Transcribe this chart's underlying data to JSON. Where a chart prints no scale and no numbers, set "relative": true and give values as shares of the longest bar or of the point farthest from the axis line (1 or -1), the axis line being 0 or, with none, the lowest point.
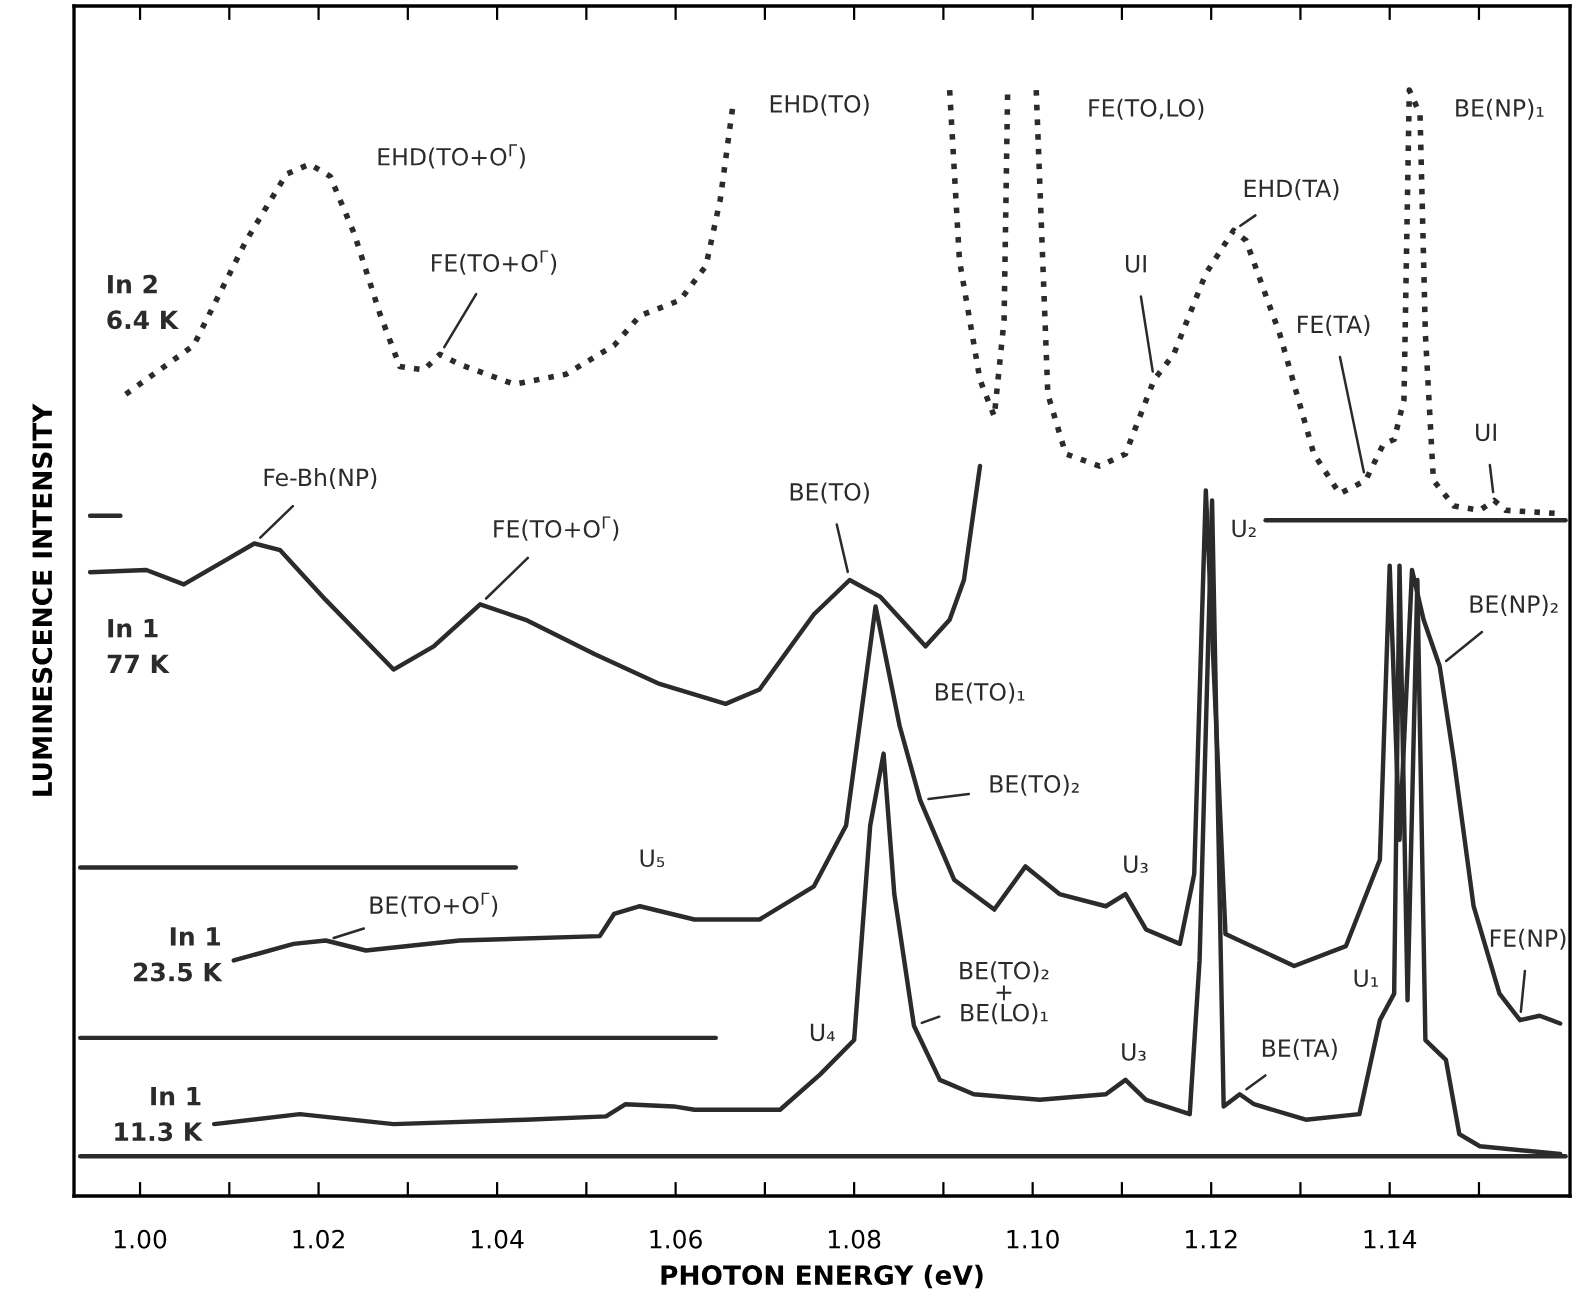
{
  "chart_data": {
    "type": "line",
    "relative": true,
    "xlabel": "PHOTON ENERGY (eV)",
    "ylabel": "LUMINESCENCE INTENSITY",
    "xlim": [
      0.9926,
      1.1602
    ],
    "xticks": [
      {
        "value": 1.0,
        "label": "1.00"
      },
      {
        "value": 1.01,
        "label": null
      },
      {
        "value": 1.02,
        "label": "1.02"
      },
      {
        "value": 1.03,
        "label": null
      },
      {
        "value": 1.04,
        "label": "1.04"
      },
      {
        "value": 1.05,
        "label": null
      },
      {
        "value": 1.06,
        "label": "1.06"
      },
      {
        "value": 1.07,
        "label": null
      },
      {
        "value": 1.08,
        "label": "1.08"
      },
      {
        "value": 1.09,
        "label": null
      },
      {
        "value": 1.1,
        "label": "1.10"
      },
      {
        "value": 1.11,
        "label": null
      },
      {
        "value": 1.12,
        "label": "1.12"
      },
      {
        "value": 1.13,
        "label": null
      },
      {
        "value": 1.14,
        "label": "1.14"
      },
      {
        "value": 1.15,
        "label": null
      }
    ],
    "grid": false,
    "series": [
      {
        "name": "In 2\n6.4 K",
        "color": "#2b2b2b",
        "line_style": "dotted",
        "x": [
          0.9984,
          1.006,
          1.0119,
          1.0164,
          1.019,
          1.0213,
          1.024,
          1.0269,
          1.0291,
          1.0318,
          1.0336,
          1.0358,
          1.0419,
          1.0477,
          1.0531,
          1.056,
          1.0605,
          1.0634,
          1.065,
          1.0665,
          1.08,
          1.0907,
          1.0918,
          1.0941,
          1.0957,
          1.0968,
          1.0972,
          1.099,
          1.1004,
          1.1017,
          1.1037,
          1.1075,
          1.1104,
          1.1136,
          1.1158,
          1.1194,
          1.1225,
          1.1239,
          1.1277,
          1.1315,
          1.1344,
          1.1373,
          1.1393,
          1.1405,
          1.1416,
          1.1422,
          1.1434,
          1.144,
          1.1449,
          1.1472,
          1.1501,
          1.1517,
          1.153,
          1.1591
        ],
        "values": [
          0.725,
          0.769,
          0.864,
          0.924,
          0.933,
          0.922,
          0.87,
          0.797,
          0.75,
          0.747,
          0.761,
          0.752,
          0.734,
          0.743,
          0.769,
          0.796,
          0.81,
          0.841,
          0.901,
          0.991,
          null,
          1.0,
          0.846,
          0.738,
          0.705,
          0.792,
          1.0,
          null,
          1.0,
          0.725,
          0.671,
          0.66,
          0.671,
          0.738,
          0.761,
          0.834,
          0.873,
          0.864,
          0.779,
          0.671,
          0.635,
          0.647,
          0.68,
          0.684,
          0.72,
          1.0,
          0.978,
          0.779,
          0.647,
          0.624,
          0.62,
          0.629,
          0.62,
          0.617
        ]
      },
      {
        "name": "In 1\n77 K",
        "color": "#2b2b2b",
        "line_style": "solid",
        "x": [
          0.9944,
          1.0007,
          1.0049,
          1.0096,
          1.0128,
          1.0157,
          1.0208,
          1.0284,
          1.0329,
          1.0381,
          1.0432,
          1.0509,
          1.0582,
          1.0656,
          1.0694,
          1.0755,
          1.0795,
          1.0829,
          1.088,
          1.0907,
          1.0923,
          1.0941
        ],
        "values": [
          0.564,
          0.566,
          0.553,
          0.575,
          0.59,
          0.584,
          0.539,
          0.476,
          0.497,
          0.535,
          0.521,
          0.49,
          0.463,
          0.445,
          0.458,
          0.526,
          0.557,
          0.542,
          0.497,
          0.521,
          0.557,
          0.66
        ]
      },
      {
        "name": "In 1\n23.5 K",
        "color": "#2b2b2b",
        "line_style": "solid",
        "x": [
          1.0105,
          1.0172,
          1.0208,
          1.0253,
          1.0358,
          1.0515,
          1.0531,
          1.056,
          1.0621,
          1.0694,
          1.0755,
          1.0791,
          1.0824,
          1.0851,
          1.0874,
          1.0912,
          1.0957,
          1.0992,
          1.103,
          1.1082,
          1.1104,
          1.1127,
          1.1165,
          1.1181,
          1.1194,
          1.1216,
          1.1293,
          1.1351,
          1.1389,
          1.14,
          1.1411,
          1.1425,
          1.1438,
          1.1456,
          1.1472,
          1.1494,
          1.1523,
          1.1546,
          1.1568,
          1.1591
        ],
        "values": [
          0.213,
          0.228,
          0.231,
          0.222,
          0.231,
          0.235,
          0.255,
          0.262,
          0.25,
          0.25,
          0.28,
          0.335,
          0.533,
          0.425,
          0.358,
          0.286,
          0.259,
          0.298,
          0.273,
          0.262,
          0.273,
          0.241,
          0.228,
          0.291,
          0.638,
          0.237,
          0.208,
          0.226,
          0.304,
          0.57,
          0.322,
          0.566,
          0.521,
          0.479,
          0.394,
          0.262,
          0.183,
          0.159,
          0.163,
          0.156
        ]
      },
      {
        "name": "In 1\n11.3 K",
        "color": "#2b2b2b",
        "line_style": "solid",
        "x": [
          1.0083,
          1.0179,
          1.0284,
          1.0432,
          1.0522,
          1.0544,
          1.0598,
          1.0621,
          1.0717,
          1.0762,
          1.08,
          1.0818,
          1.0833,
          1.0845,
          1.0867,
          1.0896,
          1.0934,
          1.1008,
          1.1082,
          1.1104,
          1.1127,
          1.1176,
          1.1187,
          1.1201,
          1.1214,
          1.1232,
          1.1248,
          1.1306,
          1.1366,
          1.1389,
          1.1405,
          1.1411,
          1.142,
          1.1431,
          1.144,
          1.1463,
          1.1478,
          1.1501,
          1.1591
        ],
        "values": [
          0.065,
          0.074,
          0.065,
          0.069,
          0.072,
          0.083,
          0.081,
          0.078,
          0.078,
          0.11,
          0.141,
          0.335,
          0.4,
          0.273,
          0.154,
          0.105,
          0.092,
          0.087,
          0.092,
          0.105,
          0.087,
          0.074,
          0.213,
          0.629,
          0.081,
          0.092,
          0.083,
          0.069,
          0.074,
          0.159,
          0.183,
          0.57,
          0.177,
          0.557,
          0.141,
          0.123,
          0.056,
          0.045,
          0.038
        ]
      },
      {
        "color": "#2b2b2b",
        "line_style": "solid",
        "x": [
          0.9944,
          0.9978
        ],
        "values": [
          0.615,
          0.615
        ]
      },
      {
        "color": "#2b2b2b",
        "line_style": "solid",
        "x": [
          0.9933,
          1.0421
        ],
        "values": [
          0.297,
          0.297
        ]
      },
      {
        "color": "#2b2b2b",
        "line_style": "solid",
        "x": [
          0.9933,
          1.0645
        ],
        "values": [
          0.143,
          0.143
        ]
      },
      {
        "color": "#2b2b2b",
        "line_style": "solid",
        "x": [
          1.1261,
          1.1597
        ],
        "values": [
          0.611,
          0.611
        ]
      },
      {
        "color": "#2b2b2b",
        "line_style": "solid",
        "x": [
          0.9933,
          1.1597
        ],
        "values": [
          0.036,
          0.036
        ]
      }
    ],
    "annotations": [
      {
        "text": "EHD(TO+O$^{Γ}$)",
        "x": 1.019,
        "y": 0.933
      },
      {
        "text": "FE(TO+O$^{Γ}$)",
        "x": 1.0336,
        "y": 0.761
      },
      {
        "text": "EHD(TO)",
        "x": 1.0665,
        "y": 0.991
      },
      {
        "text": "FE(TO,LO)",
        "x": 1.1004,
        "y": 1.0
      },
      {
        "text": "EHD(TA)",
        "x": 1.1225,
        "y": 0.873
      },
      {
        "text": "UI",
        "x": 1.1136,
        "y": 0.738
      },
      {
        "text": "FE(TA)",
        "x": 1.1373,
        "y": 0.647
      },
      {
        "text": "BE(NP)₁",
        "x": 1.1422,
        "y": 1.0
      },
      {
        "text": "UI",
        "x": 1.1517,
        "y": 0.629
      },
      {
        "text": "Fe-Bh(NP)",
        "x": 1.0128,
        "y": 0.59
      },
      {
        "text": "FE(TO+O$^{Γ}$)",
        "x": 1.0381,
        "y": 0.535
      },
      {
        "text": "BE(TO)",
        "x": 1.0795,
        "y": 0.557
      },
      {
        "text": "BE(TO)₁",
        "x": 1.0851,
        "y": 0.425
      },
      {
        "text": "BE(TO)₂",
        "x": 1.0874,
        "y": 0.358
      },
      {
        "text": "U₃",
        "x": 1.1104,
        "y": 0.273
      },
      {
        "text": "U₅",
        "x": 1.056,
        "y": 0.262
      },
      {
        "text": "BE(TO+O$^{Γ}$)",
        "x": 1.0208,
        "y": 0.231
      },
      {
        "text": "U₄",
        "x": 1.0762,
        "y": 0.11
      },
      {
        "text": "BE(TO)₂\n+\nBE(LO)₁",
        "x": 1.0867,
        "y": 0.154
      },
      {
        "text": "U₃",
        "x": 1.1104,
        "y": 0.105
      },
      {
        "text": "BE(TA)",
        "x": 1.1232,
        "y": 0.092
      },
      {
        "text": "U₁",
        "x": 1.1389,
        "y": 0.159
      },
      {
        "text": "U₂",
        "x": 1.1194,
        "y": 0.638
      },
      {
        "text": "BE(NP)₂",
        "x": 1.1456,
        "y": 0.479
      },
      {
        "text": "FE(NP)",
        "x": 1.1546,
        "y": 0.159
      }
    ]
  }
}
